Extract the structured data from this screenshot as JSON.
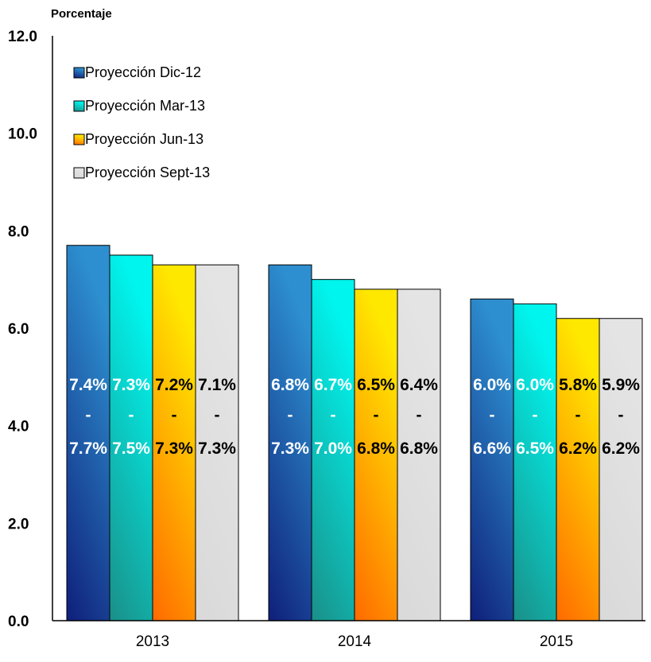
{
  "chart_data": {
    "type": "bar",
    "ylabel": "Porcentaje",
    "ylim": [
      0,
      12
    ],
    "yticks": [
      "0.0",
      "2.0",
      "4.0",
      "6.0",
      "8.0",
      "10.0",
      "12.0"
    ],
    "categories": [
      "2013",
      "2014",
      "2015"
    ],
    "legend_position": "top-left",
    "grid": false,
    "series": [
      {
        "name": "Proyección Dic-12",
        "colors": [
          "#0f1f7a",
          "#2d8fcf"
        ],
        "label_color": "#ffffff",
        "values": [
          7.7,
          7.3,
          6.6
        ],
        "ranges": [
          {
            "low": "7.4%",
            "sep": "-",
            "high": "7.7%"
          },
          {
            "low": "6.8%",
            "sep": "-",
            "high": "7.3%"
          },
          {
            "low": "6.0%",
            "sep": "-",
            "high": "6.6%"
          }
        ]
      },
      {
        "name": "Proyección Mar-13",
        "colors": [
          "#1a8f88",
          "#00f5ee"
        ],
        "label_color": "#ffffff",
        "values": [
          7.5,
          7.0,
          6.5
        ],
        "ranges": [
          {
            "low": "7.3%",
            "sep": "-",
            "high": "7.5%"
          },
          {
            "low": "6.7%",
            "sep": "-",
            "high": "7.0%"
          },
          {
            "low": "6.0%",
            "sep": "-",
            "high": "6.5%"
          }
        ]
      },
      {
        "name": "Proyección Jun-13",
        "colors": [
          "#ff6a00",
          "#ffe800"
        ],
        "label_color": "#000000",
        "values": [
          7.3,
          6.8,
          6.2
        ],
        "ranges": [
          {
            "low": "7.2%",
            "sep": "-",
            "high": "7.3%"
          },
          {
            "low": "6.5%",
            "sep": "-",
            "high": "6.8%"
          },
          {
            "low": "5.8%",
            "sep": "-",
            "high": "6.2%"
          }
        ]
      },
      {
        "name": "Proyección Sept-13",
        "colors": [
          "#d9d9d9",
          "#e4e4e4"
        ],
        "label_color": "#000000",
        "values": [
          7.3,
          6.8,
          6.2
        ],
        "ranges": [
          {
            "low": "7.1%",
            "sep": "-",
            "high": "7.3%"
          },
          {
            "low": "6.4%",
            "sep": "-",
            "high": "6.8%"
          },
          {
            "low": "5.9%",
            "sep": "-",
            "high": "6.2%"
          }
        ]
      }
    ]
  }
}
